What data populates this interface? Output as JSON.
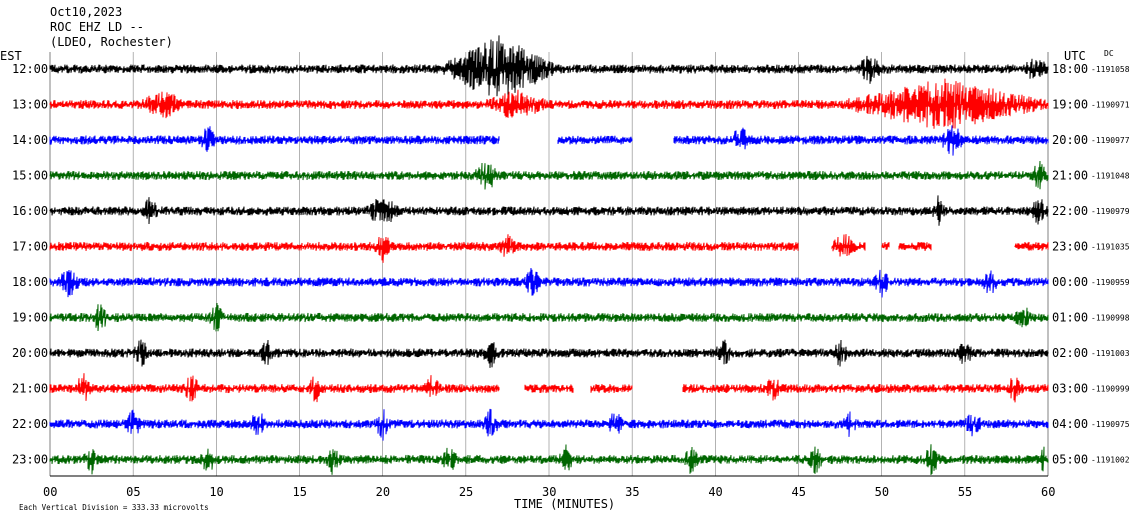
{
  "header": {
    "date": "Oct10,2023",
    "station": "ROC EHZ LD --",
    "network": "(LDEO, Rochester)"
  },
  "left_axis_title": "EST",
  "right_axis_title": "UTC",
  "dc_label": "DC",
  "xlabel": "TIME (MINUTES)",
  "footer": "Each Vertical Division =  333.33 microvolts",
  "colors": {
    "black": "#000000",
    "red": "#ff0000",
    "blue": "#0000ff",
    "green": "#006600",
    "grid": "#808080"
  },
  "chart_data": {
    "type": "line",
    "title": "ROC EHZ LD -- (LDEO, Rochester) Oct10,2023",
    "xlabel": "TIME (MINUTES)",
    "xlim": [
      0,
      60
    ],
    "x_ticks": [
      "00",
      "05",
      "10",
      "15",
      "20",
      "25",
      "30",
      "35",
      "40",
      "45",
      "50",
      "55",
      "60"
    ],
    "vertical_division_microvolts": 333.33,
    "grid": true,
    "series": [
      {
        "est": "12:00",
        "utc": "18:00",
        "dc": "-1191058",
        "color": "black",
        "gaps": [],
        "bursts": [
          [
            23.5,
            30.5,
            3.0
          ],
          [
            48.5,
            50.0,
            1.2
          ],
          [
            58.5,
            60.0,
            1.0
          ]
        ]
      },
      {
        "est": "13:00",
        "utc": "19:00",
        "dc": "-1190971",
        "color": "red",
        "gaps": [],
        "bursts": [
          [
            5.5,
            8.0,
            1.3
          ],
          [
            47.5,
            60.0,
            2.2
          ],
          [
            26.0,
            30.0,
            1.2
          ]
        ]
      },
      {
        "est": "14:00",
        "utc": "20:00",
        "dc": "-1190977",
        "color": "blue",
        "gaps": [
          [
            27.0,
            30.5
          ],
          [
            35.0,
            37.5
          ]
        ],
        "bursts": [
          [
            9.0,
            10.0,
            1.3
          ],
          [
            41.0,
            42.0,
            1.4
          ],
          [
            53.5,
            55.0,
            1.3
          ]
        ]
      },
      {
        "est": "15:00",
        "utc": "21:00",
        "dc": "-1191048",
        "color": "green",
        "gaps": [],
        "bursts": [
          [
            25.5,
            27.0,
            1.3
          ],
          [
            59.0,
            60.0,
            1.3
          ]
        ]
      },
      {
        "est": "16:00",
        "utc": "22:00",
        "dc": "-1190979",
        "color": "black",
        "gaps": [],
        "bursts": [
          [
            5.5,
            6.5,
            1.3
          ],
          [
            19.0,
            21.0,
            1.4
          ],
          [
            53.0,
            53.8,
            1.2
          ],
          [
            59.0,
            60.0,
            1.4
          ]
        ]
      },
      {
        "est": "17:00",
        "utc": "23:00",
        "dc": "-1191035",
        "color": "red",
        "gaps": [
          [
            45.0,
            47.0
          ],
          [
            49.0,
            50.0
          ],
          [
            50.5,
            51.0
          ],
          [
            53.0,
            58.0
          ]
        ],
        "bursts": [
          [
            19.5,
            20.5,
            1.3
          ],
          [
            27.0,
            28.0,
            1.0
          ],
          [
            47.0,
            48.5,
            1.0
          ]
        ]
      },
      {
        "est": "18:00",
        "utc": "00:00",
        "dc": "-1190959",
        "color": "blue",
        "gaps": [],
        "bursts": [
          [
            0.5,
            1.8,
            1.3
          ],
          [
            28.5,
            29.5,
            1.3
          ],
          [
            49.5,
            50.5,
            1.3
          ],
          [
            56.0,
            57.0,
            1.1
          ]
        ]
      },
      {
        "est": "19:00",
        "utc": "01:00",
        "dc": "-1190998",
        "color": "green",
        "gaps": [],
        "bursts": [
          [
            2.5,
            3.5,
            1.2
          ],
          [
            9.5,
            10.5,
            1.2
          ],
          [
            58.0,
            59.0,
            1.1
          ]
        ]
      },
      {
        "est": "20:00",
        "utc": "02:00",
        "dc": "-1191003",
        "color": "black",
        "gaps": [],
        "bursts": [
          [
            5.0,
            6.0,
            1.2
          ],
          [
            12.5,
            13.5,
            1.1
          ],
          [
            26.0,
            27.0,
            1.2
          ],
          [
            40.0,
            41.0,
            1.2
          ],
          [
            47.0,
            48.0,
            1.1
          ],
          [
            54.5,
            55.5,
            1.1
          ]
        ]
      },
      {
        "est": "21:00",
        "utc": "03:00",
        "dc": "-1190999",
        "color": "red",
        "gaps": [
          [
            27.0,
            28.5
          ],
          [
            31.5,
            32.5
          ],
          [
            35.0,
            38.0
          ]
        ],
        "bursts": [
          [
            1.5,
            2.5,
            1.2
          ],
          [
            8.0,
            9.0,
            1.2
          ],
          [
            15.5,
            16.5,
            1.2
          ],
          [
            22.5,
            23.5,
            1.1
          ],
          [
            43.0,
            44.0,
            1.1
          ],
          [
            57.5,
            58.5,
            1.1
          ]
        ]
      },
      {
        "est": "22:00",
        "utc": "04:00",
        "dc": "-1190975",
        "color": "blue",
        "gaps": [],
        "bursts": [
          [
            4.5,
            5.5,
            1.2
          ],
          [
            12.0,
            13.0,
            1.2
          ],
          [
            19.5,
            20.5,
            1.3
          ],
          [
            26.0,
            27.0,
            1.2
          ],
          [
            33.5,
            34.5,
            1.1
          ],
          [
            47.5,
            48.5,
            1.1
          ],
          [
            55.0,
            56.0,
            1.2
          ]
        ]
      },
      {
        "est": "23:00",
        "utc": "05:00",
        "dc": "-1191002",
        "color": "green",
        "gaps": [],
        "bursts": [
          [
            2.0,
            3.0,
            1.2
          ],
          [
            9.0,
            10.0,
            1.2
          ],
          [
            16.5,
            17.5,
            1.2
          ],
          [
            23.5,
            24.5,
            1.1
          ],
          [
            30.5,
            31.5,
            1.1
          ],
          [
            38.0,
            39.0,
            1.1
          ],
          [
            45.5,
            46.5,
            1.1
          ],
          [
            52.5,
            53.5,
            1.2
          ],
          [
            59.5,
            60.0,
            1.2
          ]
        ]
      }
    ]
  }
}
